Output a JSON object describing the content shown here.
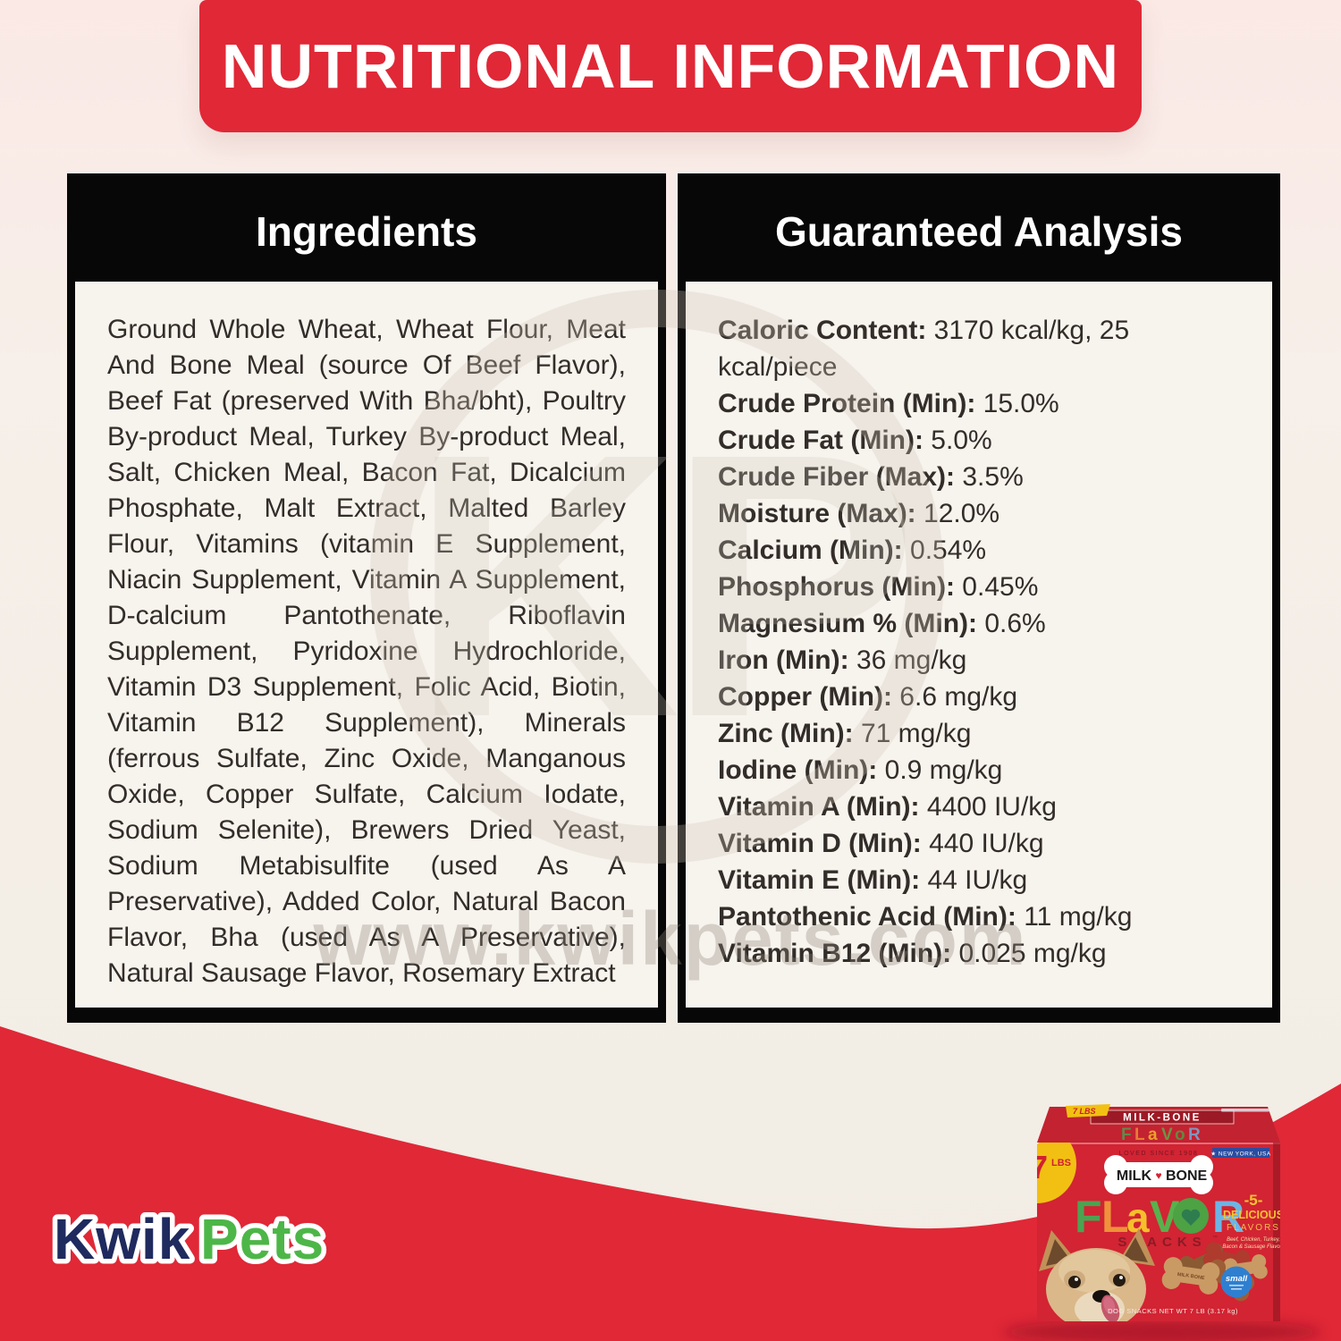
{
  "header": {
    "title": "NUTRITIONAL INFORMATION"
  },
  "ingredients_card": {
    "title": "Ingredients",
    "text": "Ground Whole Wheat, Wheat Flour, Meat And Bone Meal (source Of Beef Flavor), Beef Fat (preserved With Bha/bht), Poultry By-product Meal, Turkey By-product Meal, Salt, Chicken Meal, Bacon Fat, Dicalcium Phosphate, Malt Extract, Malted Barley Flour, Vitamins (vitamin E Supplement, Niacin Supplement, Vitamin A Supplement, D-calcium Pantothenate, Riboflavin Supplement, Pyridoxine Hydrochloride, Vitamin D3 Supplement, Folic Acid, Biotin, Vitamin B12 Supplement), Minerals (ferrous Sulfate, Zinc Oxide, Manganous Oxide, Copper Sulfate, Calcium Iodate, Sodium Selenite), Brewers Dried Yeast, Sodium Metabisulfite (used As A Preservative), Added Color, Natural Bacon Flavor, Bha (used As A Preservative), Natural Sausage Flavor, Rosemary Extract"
  },
  "analysis_card": {
    "title": "Guaranteed Analysis",
    "rows": [
      {
        "label": "Caloric Content:",
        "value": "3170 kcal/kg, 25 kcal/piece"
      },
      {
        "label": "Crude Protein (Min):",
        "value": "15.0%"
      },
      {
        "label": "Crude Fat (Min):",
        "value": "5.0%"
      },
      {
        "label": "Crude Fiber (Max):",
        "value": "3.5%"
      },
      {
        "label": "Moisture (Max):",
        "value": "12.0%"
      },
      {
        "label": "Calcium (Min):",
        "value": "0.54%"
      },
      {
        "label": "Phosphorus (Min):",
        "value": "0.45%"
      },
      {
        "label": "Magnesium % (Min):",
        "value": "0.6%"
      },
      {
        "label": "Iron (Min):",
        "value": "36 mg/kg"
      },
      {
        "label": "Copper (Min):",
        "value": "6.6 mg/kg"
      },
      {
        "label": "Zinc (Min):",
        "value": "71 mg/kg"
      },
      {
        "label": "Iodine (Min):",
        "value": "0.9 mg/kg"
      },
      {
        "label": "Vitamin A (Min):",
        "value": "4400 IU/kg"
      },
      {
        "label": "Vitamin D (Min):",
        "value": "440 IU/kg"
      },
      {
        "label": "Vitamin E (Min):",
        "value": "44 IU/kg"
      },
      {
        "label": "Pantothenic Acid (Min):",
        "value": "11 mg/kg"
      },
      {
        "label": "Vitamin B12 (Min):",
        "value": "0.025 mg/kg"
      }
    ]
  },
  "watermark": {
    "monogram": "KP",
    "url": "www.kwikpets.com"
  },
  "brand_logo": {
    "kwik": "Kwik",
    "pets": "Pets"
  },
  "product_box": {
    "flap": {
      "brand": "MILK-BONE",
      "weight": "7 LBS"
    },
    "weight_badge": {
      "number": "7",
      "unit": "LBS"
    },
    "tagline": "LOVED SINCE 1908",
    "bone_logo": {
      "milk": "MILK",
      "heart": "♥",
      "bone": "BONE"
    },
    "flavor_letters": [
      {
        "ch": "F",
        "color": "#4ca351"
      },
      {
        "ch": "L",
        "color": "#ef923b"
      },
      {
        "ch": "a",
        "color": "#f5c02c"
      },
      {
        "ch": "V",
        "color": "#58b14c"
      },
      {
        "ch": "R",
        "color": "#6cb5e4"
      }
    ],
    "heart_o": {
      "circle": "#4da244",
      "heart": "#2e7d4f"
    },
    "snacks": "SNACKS",
    "trademark": "™",
    "five": "-5-",
    "delicious": "DELICIOUS",
    "flavors": "FLAVORS",
    "note_line1": "Beef, Chicken, Turkey,",
    "note_line2": "Bacon & Sausage Flavors",
    "origin": "★ NEW YORK, USA",
    "size_badge": "small",
    "bottom_text": "DOG SNACKS    NET WT 7 LB (3.17 kg)",
    "biscuit_stamp": "MILK BONE"
  },
  "colors": {
    "accent_red": "#e02837",
    "box_red": "#d22433",
    "flap_red": "#c32230",
    "black": "#070707",
    "card_bg": "#f7f3ed",
    "page_top": "#fbe9e6",
    "page_bottom": "#f1ece4",
    "body_text": "#332d29",
    "badge_yellow": "#f2c013",
    "small_badge_blue": "#2f7fd1",
    "logo_navy": "#1f2a5e",
    "logo_green": "#4db648",
    "watermark_gray": "#cfc7bb"
  }
}
